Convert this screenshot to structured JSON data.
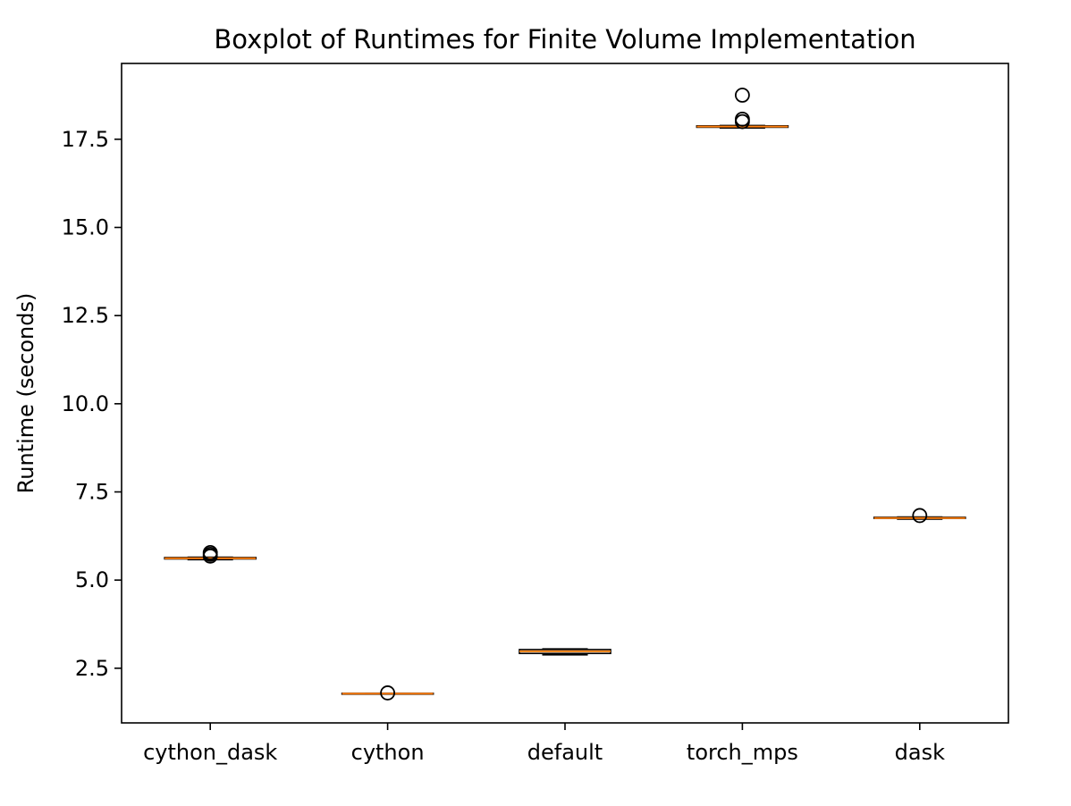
{
  "chart_data": {
    "type": "boxplot",
    "title": "Boxplot of Runtimes for Finite Volume Implementation",
    "xlabel": "",
    "ylabel": "Runtime (seconds)",
    "ylim": [
      0.95,
      19.65
    ],
    "yticks": [
      2.5,
      5.0,
      7.5,
      10.0,
      12.5,
      15.0,
      17.5
    ],
    "ytick_labels": [
      "2.5",
      "5.0",
      "7.5",
      "10.0",
      "12.5",
      "15.0",
      "17.5"
    ],
    "categories": [
      "cython_dask",
      "cython",
      "default",
      "torch_mps",
      "dask"
    ],
    "grid": false,
    "colors": {
      "box": "#000000",
      "median": "#ff7f0e",
      "flier": "#000000"
    },
    "boxes": [
      {
        "category": "cython_dask",
        "whisker_low": 5.58,
        "q1": 5.6,
        "median": 5.62,
        "q3": 5.64,
        "whisker_high": 5.65,
        "outliers": [
          5.68,
          5.73,
          5.78
        ]
      },
      {
        "category": "cython",
        "whisker_low": 1.77,
        "q1": 1.77,
        "median": 1.78,
        "q3": 1.79,
        "whisker_high": 1.79,
        "outliers": [
          1.8
        ]
      },
      {
        "category": "default",
        "whisker_low": 2.88,
        "q1": 2.92,
        "median": 2.98,
        "q3": 3.03,
        "whisker_high": 3.05,
        "outliers": []
      },
      {
        "category": "torch_mps",
        "whisker_low": 17.82,
        "q1": 17.84,
        "median": 17.86,
        "q3": 17.88,
        "whisker_high": 17.89,
        "outliers": [
          18.0,
          18.07,
          18.75
        ]
      },
      {
        "category": "dask",
        "whisker_low": 6.73,
        "q1": 6.75,
        "median": 6.76,
        "q3": 6.78,
        "whisker_high": 6.79,
        "outliers": [
          6.83
        ]
      }
    ]
  }
}
